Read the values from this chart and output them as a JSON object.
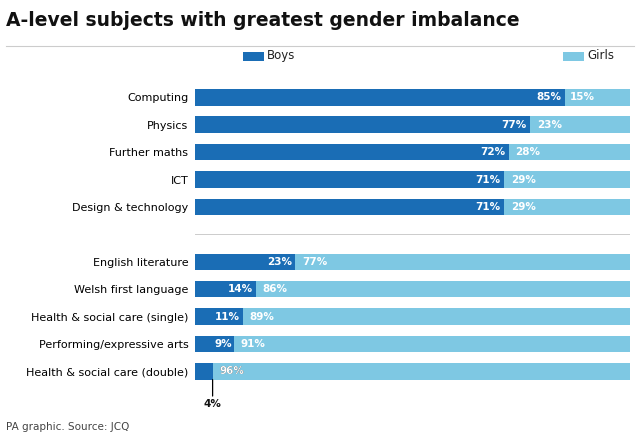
{
  "title": "A-level subjects with greatest gender imbalance",
  "source": "PA graphic. Source: JCQ",
  "boys_color": "#1a6db5",
  "girls_color": "#7ec8e3",
  "categories_top": [
    "Computing",
    "Physics",
    "Further maths",
    "ICT",
    "Design & technology"
  ],
  "boys_top": [
    85,
    77,
    72,
    71,
    71
  ],
  "girls_top": [
    15,
    23,
    28,
    29,
    29
  ],
  "categories_bottom": [
    "English literature",
    "Welsh first language",
    "Health & social care (single)",
    "Performing/expressive arts",
    "Health & social care (double)"
  ],
  "boys_bottom": [
    23,
    14,
    11,
    9,
    4
  ],
  "girls_bottom": [
    77,
    86,
    89,
    91,
    96
  ],
  "bar_height": 0.6,
  "title_fontsize": 13.5,
  "label_fontsize": 8.0,
  "bar_label_fontsize": 7.5,
  "source_fontsize": 7.5
}
